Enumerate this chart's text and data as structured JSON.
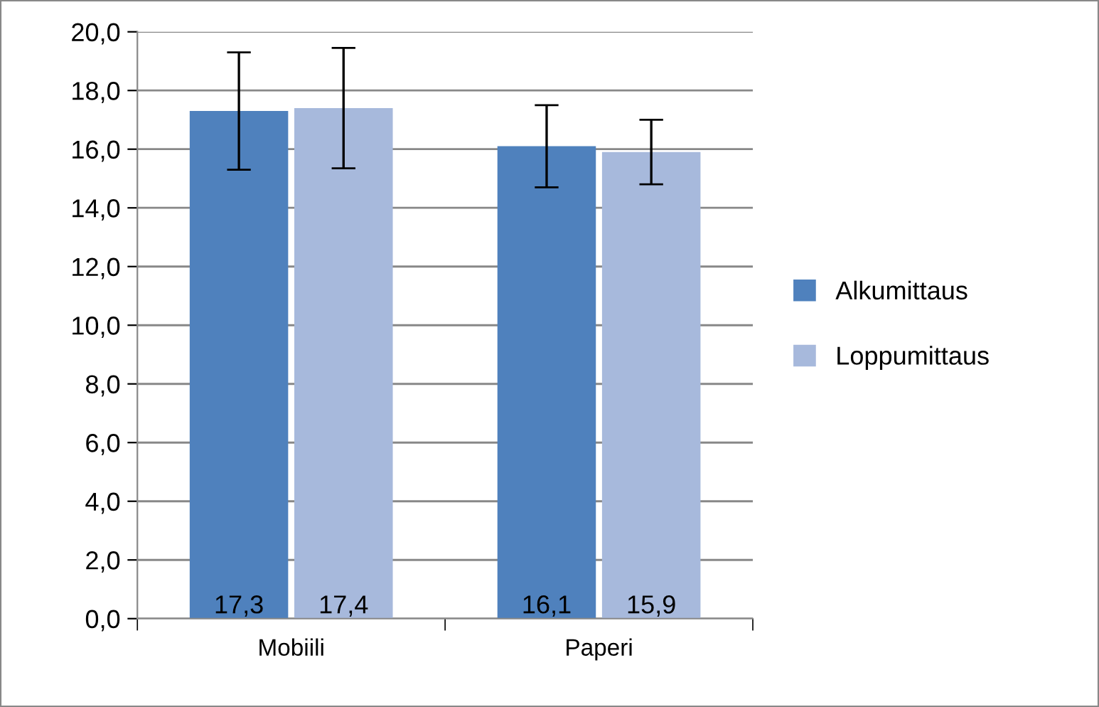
{
  "chart_data": {
    "type": "bar",
    "categories": [
      "Mobiili",
      "Paperi"
    ],
    "series": [
      {
        "name": "Alkumittaus",
        "color": "#4f81bd",
        "values": [
          17.3,
          16.1
        ],
        "errors": [
          2.0,
          1.4
        ],
        "value_labels": [
          "17,3",
          "16,1"
        ]
      },
      {
        "name": "Loppumittaus",
        "color": "#a7b9dc",
        "values": [
          17.4,
          15.9
        ],
        "errors": [
          2.05,
          1.1
        ],
        "value_labels": [
          "17,4",
          "15,9"
        ]
      }
    ],
    "ylim": [
      0,
      20
    ],
    "yticks": [
      {
        "value": 0,
        "label": "0,0"
      },
      {
        "value": 2,
        "label": "2,0"
      },
      {
        "value": 4,
        "label": "4,0"
      },
      {
        "value": 6,
        "label": "6,0"
      },
      {
        "value": 8,
        "label": "8,0"
      },
      {
        "value": 10,
        "label": "10,0"
      },
      {
        "value": 12,
        "label": "12,0"
      },
      {
        "value": 14,
        "label": "14,0"
      },
      {
        "value": 16,
        "label": "16,0"
      },
      {
        "value": 18,
        "label": "18,0"
      },
      {
        "value": 20,
        "label": "20,0"
      }
    ],
    "grid": "y",
    "legend": "right"
  }
}
